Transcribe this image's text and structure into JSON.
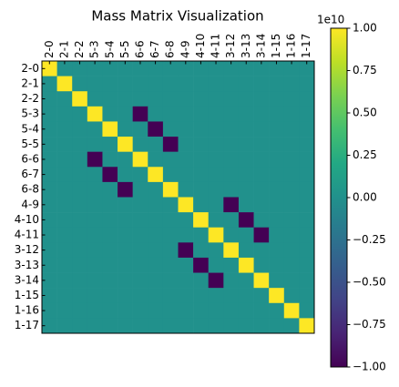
{
  "chart_data": {
    "type": "heatmap",
    "title": "Mass Matrix Visualization",
    "x_categories": [
      "2-0",
      "2-1",
      "2-2",
      "5-3",
      "5-4",
      "5-5",
      "6-6",
      "6-7",
      "6-8",
      "4-9",
      "4-10",
      "4-11",
      "3-12",
      "3-13",
      "3-14",
      "1-15",
      "1-16",
      "1-17"
    ],
    "y_categories": [
      "2-0",
      "2-1",
      "2-2",
      "5-3",
      "5-4",
      "5-5",
      "6-6",
      "6-7",
      "6-8",
      "4-9",
      "4-10",
      "4-11",
      "3-12",
      "3-13",
      "3-14",
      "1-15",
      "1-16",
      "1-17"
    ],
    "values": [
      [
        1,
        0,
        0,
        0,
        0,
        0,
        0,
        0,
        0,
        0,
        0,
        0,
        0,
        0,
        0,
        0,
        0,
        0
      ],
      [
        0,
        1,
        0,
        0,
        0,
        0,
        0,
        0,
        0,
        0,
        0,
        0,
        0,
        0,
        0,
        0,
        0,
        0
      ],
      [
        0,
        0,
        1,
        0,
        0,
        0,
        0,
        0,
        0,
        0,
        0,
        0,
        0,
        0,
        0,
        0,
        0,
        0
      ],
      [
        0,
        0,
        0,
        1,
        0,
        0,
        -1,
        0,
        0,
        0,
        0,
        0,
        0,
        0,
        0,
        0,
        0,
        0
      ],
      [
        0,
        0,
        0,
        0,
        1,
        0,
        0,
        -1,
        0,
        0,
        0,
        0,
        0,
        0,
        0,
        0,
        0,
        0
      ],
      [
        0,
        0,
        0,
        0,
        0,
        1,
        0,
        0,
        -1,
        0,
        0,
        0,
        0,
        0,
        0,
        0,
        0,
        0
      ],
      [
        0,
        0,
        0,
        -1,
        0,
        0,
        1,
        0,
        0,
        0,
        0,
        0,
        0,
        0,
        0,
        0,
        0,
        0
      ],
      [
        0,
        0,
        0,
        0,
        -1,
        0,
        0,
        1,
        0,
        0,
        0,
        0,
        0,
        0,
        0,
        0,
        0,
        0
      ],
      [
        0,
        0,
        0,
        0,
        0,
        -1,
        0,
        0,
        1,
        0,
        0,
        0,
        0,
        0,
        0,
        0,
        0,
        0
      ],
      [
        0,
        0,
        0,
        0,
        0,
        0,
        0,
        0,
        0,
        1,
        0,
        0,
        -1,
        0,
        0,
        0,
        0,
        0
      ],
      [
        0,
        0,
        0,
        0,
        0,
        0,
        0,
        0,
        0,
        0,
        1,
        0,
        0,
        -1,
        0,
        0,
        0,
        0
      ],
      [
        0,
        0,
        0,
        0,
        0,
        0,
        0,
        0,
        0,
        0,
        0,
        1,
        0,
        0,
        -1,
        0,
        0,
        0
      ],
      [
        0,
        0,
        0,
        0,
        0,
        0,
        0,
        0,
        0,
        -1,
        0,
        0,
        1,
        0,
        0,
        0,
        0,
        0
      ],
      [
        0,
        0,
        0,
        0,
        0,
        0,
        0,
        0,
        0,
        0,
        -1,
        0,
        0,
        1,
        0,
        0,
        0,
        0
      ],
      [
        0,
        0,
        0,
        0,
        0,
        0,
        0,
        0,
        0,
        0,
        0,
        -1,
        0,
        0,
        1,
        0,
        0,
        0
      ],
      [
        0,
        0,
        0,
        0,
        0,
        0,
        0,
        0,
        0,
        0,
        0,
        0,
        0,
        0,
        0,
        1,
        0,
        0
      ],
      [
        0,
        0,
        0,
        0,
        0,
        0,
        0,
        0,
        0,
        0,
        0,
        0,
        0,
        0,
        0,
        0,
        1,
        0
      ],
      [
        0,
        0,
        0,
        0,
        0,
        0,
        0,
        0,
        0,
        0,
        0,
        0,
        0,
        0,
        0,
        0,
        0,
        1
      ]
    ],
    "colormap": "viridis",
    "zlim": [
      -1,
      1
    ],
    "zticks": [
      {
        "value": -1,
        "label": "−1.00"
      },
      {
        "value": -0.75,
        "label": "−0.75"
      },
      {
        "value": -0.5,
        "label": "−0.50"
      },
      {
        "value": -0.25,
        "label": "−0.25"
      },
      {
        "value": 0,
        "label": "0.00"
      },
      {
        "value": 0.25,
        "label": "0.25"
      },
      {
        "value": 0.5,
        "label": "0.50"
      },
      {
        "value": 0.75,
        "label": "0.75"
      },
      {
        "value": 1,
        "label": "1.00"
      }
    ],
    "colorbar_offset": "1e10"
  }
}
